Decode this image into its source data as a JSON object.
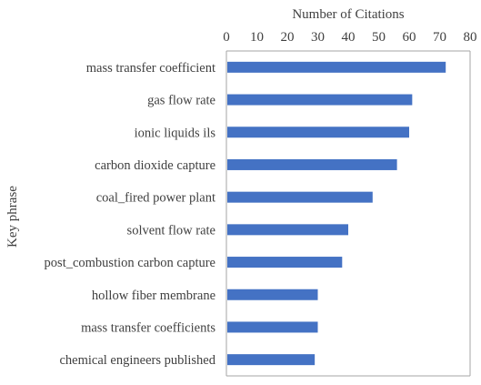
{
  "chart_data": {
    "type": "bar",
    "orientation": "horizontal",
    "xlabel": "Number of Citations",
    "ylabel": "Key phrase",
    "xlim": [
      0,
      80
    ],
    "xticks": [
      0,
      10,
      20,
      30,
      40,
      50,
      60,
      70,
      80
    ],
    "x_axis_position": "top",
    "grid": false,
    "legend": "none",
    "bar_color": "#4472C4",
    "categories": [
      "mass transfer coefficient",
      "gas flow rate",
      "ionic liquids ils",
      "carbon dioxide capture",
      "coal_fired power plant",
      "solvent flow rate",
      "post_combustion carbon capture",
      "hollow fiber membrane",
      "mass transfer coefficients",
      "chemical engineers published"
    ],
    "values": [
      72,
      61,
      60,
      56,
      48,
      40,
      38,
      30,
      30,
      29
    ]
  }
}
